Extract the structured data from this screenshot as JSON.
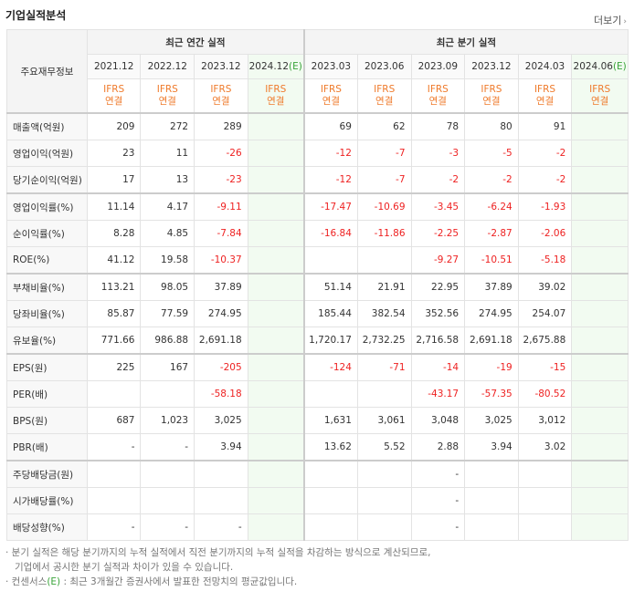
{
  "title": "기업실적분석",
  "more": "더보기",
  "header": {
    "row_label": "주요재무정보",
    "annual_group": "최근 연간 실적",
    "quarter_group": "최근 분기 실적",
    "periods": [
      {
        "label": "2021.12"
      },
      {
        "label": "2022.12"
      },
      {
        "label": "2023.12"
      },
      {
        "label": "2024.12",
        "est": "(E)"
      },
      {
        "label": "2023.03"
      },
      {
        "label": "2023.06"
      },
      {
        "label": "2023.09"
      },
      {
        "label": "2023.12"
      },
      {
        "label": "2024.03"
      },
      {
        "label": "2024.06",
        "est": "(E)"
      }
    ],
    "ifrs_top": "IFRS",
    "ifrs_bottom": "연결"
  },
  "rows": [
    {
      "label": "매출액(억원)",
      "values": [
        "209",
        "272",
        "289",
        "",
        "69",
        "62",
        "78",
        "80",
        "91",
        ""
      ]
    },
    {
      "label": "영업이익(억원)",
      "values": [
        "23",
        "11",
        "-26",
        "",
        "-12",
        "-7",
        "-3",
        "-5",
        "-2",
        ""
      ]
    },
    {
      "label": "당기순이익(억원)",
      "values": [
        "17",
        "13",
        "-23",
        "",
        "-12",
        "-7",
        "-2",
        "-2",
        "-2",
        ""
      ]
    },
    {
      "label": "영업이익률(%)",
      "values": [
        "11.14",
        "4.17",
        "-9.11",
        "",
        "-17.47",
        "-10.69",
        "-3.45",
        "-6.24",
        "-1.93",
        ""
      ]
    },
    {
      "label": "순이익률(%)",
      "values": [
        "8.28",
        "4.85",
        "-7.84",
        "",
        "-16.84",
        "-11.86",
        "-2.25",
        "-2.87",
        "-2.06",
        ""
      ]
    },
    {
      "label": "ROE(%)",
      "values": [
        "41.12",
        "19.58",
        "-10.37",
        "",
        "",
        "",
        "-9.27",
        "-10.51",
        "-5.18",
        ""
      ]
    },
    {
      "label": "부채비율(%)",
      "values": [
        "113.21",
        "98.05",
        "37.89",
        "",
        "51.14",
        "21.91",
        "22.95",
        "37.89",
        "39.02",
        ""
      ]
    },
    {
      "label": "당좌비율(%)",
      "values": [
        "85.87",
        "77.59",
        "274.95",
        "",
        "185.44",
        "382.54",
        "352.56",
        "274.95",
        "254.07",
        ""
      ]
    },
    {
      "label": "유보율(%)",
      "values": [
        "771.66",
        "986.88",
        "2,691.18",
        "",
        "1,720.17",
        "2,732.25",
        "2,716.58",
        "2,691.18",
        "2,675.88",
        ""
      ]
    },
    {
      "label": "EPS(원)",
      "values": [
        "225",
        "167",
        "-205",
        "",
        "-124",
        "-71",
        "-14",
        "-19",
        "-15",
        ""
      ]
    },
    {
      "label": "PER(배)",
      "values": [
        "",
        "",
        "-58.18",
        "",
        "",
        "",
        "-43.17",
        "-57.35",
        "-80.52",
        ""
      ]
    },
    {
      "label": "BPS(원)",
      "values": [
        "687",
        "1,023",
        "3,025",
        "",
        "1,631",
        "3,061",
        "3,048",
        "3,025",
        "3,012",
        ""
      ]
    },
    {
      "label": "PBR(배)",
      "values": [
        "-",
        "-",
        "3.94",
        "",
        "13.62",
        "5.52",
        "2.88",
        "3.94",
        "3.02",
        ""
      ]
    },
    {
      "label": "주당배당금(원)",
      "values": [
        "",
        "",
        "",
        "",
        "",
        "",
        "-",
        "",
        "",
        ""
      ]
    },
    {
      "label": "시가배당률(%)",
      "values": [
        "",
        "",
        "",
        "",
        "",
        "",
        "-",
        "",
        "",
        ""
      ]
    },
    {
      "label": "배당성향(%)",
      "values": [
        "-",
        "-",
        "-",
        "",
        "",
        "",
        "-",
        "",
        "",
        ""
      ]
    }
  ],
  "notes": {
    "line1": "· 분기 실적은 해당 분기까지의 누적 실적에서 직전 분기까지의 누적 실적을 차감하는 방식으로 계산되므로,",
    "line2": "기업에서 공시한 분기 실적과 차이가 있을 수 있습니다.",
    "line3_pre": "· 컨센서스",
    "line3_e": "(E)",
    "line3_post": " : 최근 3개월간 증권사에서 발표한 전망치의 평균값입니다."
  }
}
